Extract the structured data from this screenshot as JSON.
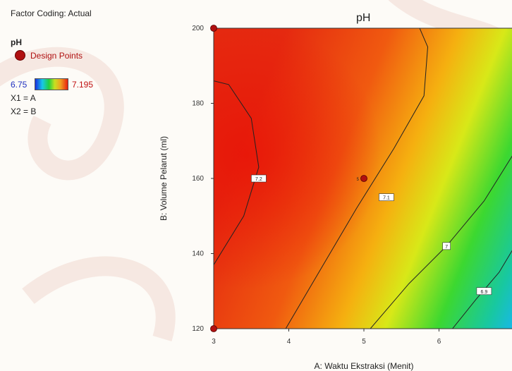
{
  "sidebar": {
    "factor_coding": "Factor Coding: Actual",
    "response_name": "pH",
    "design_points_label": "Design Points",
    "scale_min": "6.75",
    "scale_max": "7.195",
    "x1_mapping": "X1 = A",
    "x2_mapping": "X2 = B"
  },
  "colors": {
    "design_point": "#b01010",
    "contour_line": "#222222",
    "scale_low": "#1a2ee0",
    "scale_high": "#e82010"
  },
  "chart_data": {
    "type": "heatmap",
    "title": "pH",
    "xlabel": "A: Waktu Ekstraksi (Menit)",
    "ylabel": "B: Volume Pelarut (ml)",
    "xlim": [
      3,
      7
    ],
    "ylim": [
      120,
      200
    ],
    "x_ticks": [
      "3",
      "4",
      "5",
      "6"
    ],
    "y_ticks": [
      "120",
      "140",
      "160",
      "180",
      "200"
    ],
    "color_range": [
      6.75,
      7.195
    ],
    "contours": [
      {
        "level": "7.2",
        "label_at": [
          3.6,
          160
        ]
      },
      {
        "level": "7.1",
        "label_at": [
          5.3,
          155
        ]
      },
      {
        "level": "7",
        "label_at": [
          6.1,
          142
        ]
      },
      {
        "level": "6.9",
        "label_at": [
          6.6,
          130
        ]
      }
    ],
    "design_points": [
      {
        "x": 3,
        "y": 200,
        "label": ""
      },
      {
        "x": 5,
        "y": 160,
        "label": "5"
      },
      {
        "x": 3,
        "y": 120,
        "label": ""
      }
    ]
  }
}
